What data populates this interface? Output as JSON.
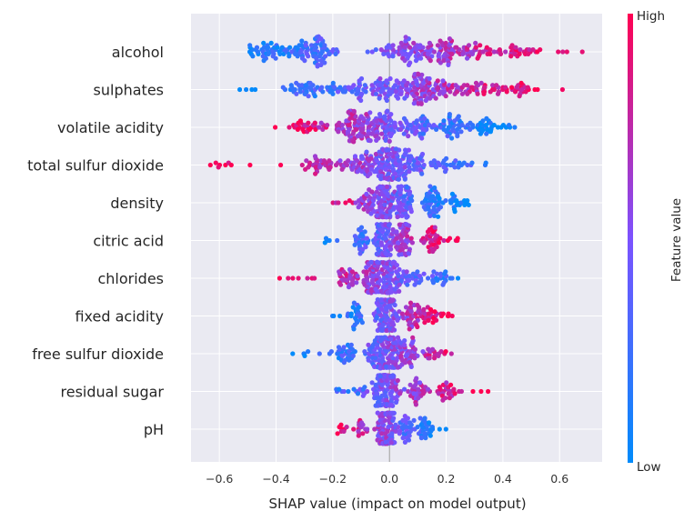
{
  "chart_data": {
    "type": "scatter",
    "subtype": "shap-beeswarm",
    "title": "",
    "xlabel": "SHAP value (impact on model output)",
    "xlim": [
      -0.7,
      0.75
    ],
    "xticks": [
      -0.6,
      -0.4,
      -0.2,
      0.0,
      0.2,
      0.4,
      0.6
    ],
    "xtick_labels": [
      "−0.6",
      "−0.4",
      "−0.2",
      "0.0",
      "0.2",
      "0.4",
      "0.6"
    ],
    "grid": true,
    "background": "#eaeaf2",
    "zero_line": true,
    "colorbar": {
      "label": "Feature value",
      "high_label": "High",
      "low_label": "Low",
      "low_color": "#008bfb",
      "high_color": "#ff0052"
    },
    "features": [
      {
        "name": "alcohol",
        "min": -0.49,
        "max": 0.68,
        "peaks": [
          [
            -0.42,
            0.6
          ],
          [
            -0.27,
            1.0
          ],
          [
            0.0,
            0.3
          ],
          [
            0.08,
            0.6
          ],
          [
            0.18,
            0.75
          ],
          [
            0.3,
            0.55
          ],
          [
            0.45,
            0.3
          ]
        ],
        "color_slope": 1,
        "count": 300
      },
      {
        "name": "sulphates",
        "min": -0.53,
        "max": 0.61,
        "peaks": [
          [
            -0.3,
            0.45
          ],
          [
            -0.15,
            0.6
          ],
          [
            -0.02,
            0.65
          ],
          [
            0.09,
            1.0
          ],
          [
            0.2,
            0.75
          ],
          [
            0.32,
            0.35
          ],
          [
            0.45,
            0.15
          ]
        ],
        "color_slope": 1,
        "count": 300
      },
      {
        "name": "volatile acidity",
        "min": -0.4,
        "max": 0.44,
        "peaks": [
          [
            -0.28,
            0.3
          ],
          [
            -0.12,
            1.0
          ],
          [
            -0.02,
            0.8
          ],
          [
            0.1,
            0.6
          ],
          [
            0.22,
            0.45
          ],
          [
            0.35,
            0.3
          ]
        ],
        "color_slope": -1,
        "count": 300
      },
      {
        "name": "total sulfur dioxide",
        "min": -0.63,
        "max": 0.34,
        "peaks": [
          [
            -0.25,
            0.3
          ],
          [
            -0.1,
            0.5
          ],
          [
            0.0,
            1.0
          ],
          [
            0.08,
            0.55
          ],
          [
            0.2,
            0.2
          ]
        ],
        "color_slope": -1,
        "count": 260
      },
      {
        "name": "density",
        "min": -0.2,
        "max": 0.28,
        "peaks": [
          [
            -0.08,
            0.5
          ],
          [
            -0.02,
            1.0
          ],
          [
            0.05,
            0.7
          ],
          [
            0.15,
            0.45
          ],
          [
            0.24,
            0.2
          ]
        ],
        "color_slope": -1,
        "count": 250
      },
      {
        "name": "citric acid",
        "min": -0.23,
        "max": 0.24,
        "peaks": [
          [
            -0.1,
            0.3
          ],
          [
            -0.02,
            1.0
          ],
          [
            0.05,
            0.6
          ],
          [
            0.15,
            0.3
          ]
        ],
        "color_slope": 1,
        "count": 230
      },
      {
        "name": "chlorides",
        "min": -0.39,
        "max": 0.24,
        "peaks": [
          [
            -0.15,
            0.4
          ],
          [
            -0.05,
            0.75
          ],
          [
            0.0,
            1.0
          ],
          [
            0.08,
            0.45
          ],
          [
            0.18,
            0.25
          ]
        ],
        "color_slope": -1,
        "count": 240
      },
      {
        "name": "fixed acidity",
        "min": -0.2,
        "max": 0.22,
        "peaks": [
          [
            -0.12,
            0.35
          ],
          [
            -0.03,
            0.8
          ],
          [
            0.0,
            1.0
          ],
          [
            0.08,
            0.6
          ],
          [
            0.14,
            0.3
          ]
        ],
        "color_slope": 1,
        "count": 230
      },
      {
        "name": "free sulfur dioxide",
        "min": -0.34,
        "max": 0.22,
        "peaks": [
          [
            -0.15,
            0.3
          ],
          [
            -0.05,
            0.7
          ],
          [
            0.0,
            1.0
          ],
          [
            0.06,
            0.55
          ],
          [
            0.15,
            0.2
          ]
        ],
        "color_slope": 1,
        "count": 230
      },
      {
        "name": "residual sugar",
        "min": -0.19,
        "max": 0.35,
        "peaks": [
          [
            -0.1,
            0.2
          ],
          [
            -0.02,
            0.8
          ],
          [
            0.0,
            1.0
          ],
          [
            0.1,
            0.5
          ],
          [
            0.2,
            0.2
          ]
        ],
        "color_slope": 1,
        "count": 220
      },
      {
        "name": "pH",
        "min": -0.18,
        "max": 0.2,
        "peaks": [
          [
            -0.1,
            0.3
          ],
          [
            -0.02,
            0.8
          ],
          [
            0.0,
            1.0
          ],
          [
            0.06,
            0.5
          ],
          [
            0.13,
            0.25
          ]
        ],
        "color_slope": -1,
        "count": 220
      }
    ]
  }
}
